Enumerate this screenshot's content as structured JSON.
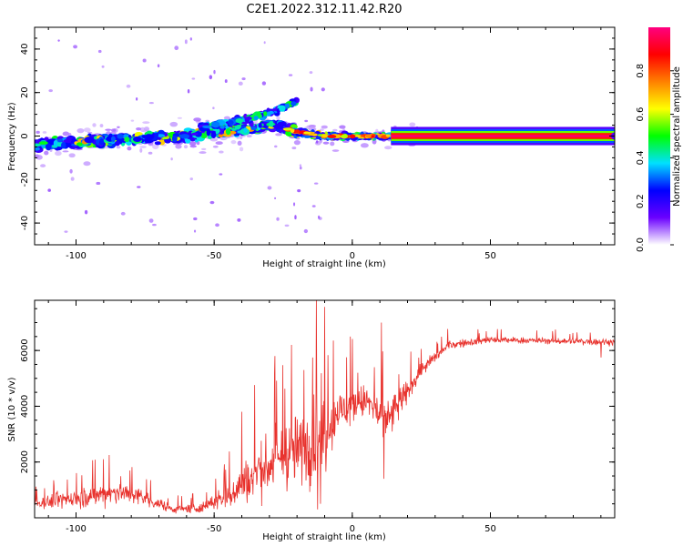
{
  "title": "C2E1.2022.312.11.42.R20",
  "chart_data": [
    {
      "type": "heatmap",
      "xlabel": "Height of straight line (km)",
      "ylabel": "Frequency (Hz)",
      "xlim": [
        -115,
        95
      ],
      "ylim": [
        -50,
        50
      ],
      "xticks": [
        -100,
        -50,
        0,
        50
      ],
      "yticks": [
        -40,
        -20,
        0,
        20,
        40
      ],
      "colorbar": {
        "label": "Normalized spectral amplitude",
        "range": [
          0,
          1
        ],
        "ticks": [
          "0.0",
          "0.2",
          "0.4",
          "0.6",
          "0.8"
        ],
        "colors": [
          "#ffffff",
          "#6a00ff",
          "#0000ff",
          "#00e0ff",
          "#00ff00",
          "#ffff00",
          "#ff8000",
          "#ff0000",
          "#ff0080"
        ]
      },
      "band_centerline": [
        {
          "x": -115,
          "y": -4
        },
        {
          "x": -90,
          "y": -2
        },
        {
          "x": -60,
          "y": 0
        },
        {
          "x": -40,
          "y": 3
        },
        {
          "x": -28,
          "y": 5
        },
        {
          "x": -20,
          "y": 2
        },
        {
          "x": -10,
          "y": 0
        },
        {
          "x": 15,
          "y": 0
        },
        {
          "x": 95,
          "y": 0
        }
      ],
      "branch": [
        {
          "x": -55,
          "y": 4
        },
        {
          "x": -40,
          "y": 7
        },
        {
          "x": -27,
          "y": 12
        },
        {
          "x": -20,
          "y": 16
        }
      ],
      "steady_line": {
        "x_start": 14,
        "x_end": 95,
        "y": 0,
        "amplitude": 1.0
      }
    },
    {
      "type": "line",
      "xlabel": "Height of straight line (km)",
      "ylabel": "SNR (10 * v/v)",
      "xlim": [
        -115,
        95
      ],
      "ylim": [
        0,
        7800
      ],
      "xticks": [
        -100,
        -50,
        0,
        50
      ],
      "yticks": [
        2000,
        4000,
        6000
      ],
      "series": [
        {
          "color": "#e8322d",
          "envelope": [
            {
              "x": -115,
              "base": 500,
              "spread": 350
            },
            {
              "x": -100,
              "base": 700,
              "spread": 500
            },
            {
              "x": -85,
              "base": 950,
              "spread": 700
            },
            {
              "x": -75,
              "base": 700,
              "spread": 450
            },
            {
              "x": -65,
              "base": 300,
              "spread": 200
            },
            {
              "x": -55,
              "base": 350,
              "spread": 250
            },
            {
              "x": -45,
              "base": 800,
              "spread": 700
            },
            {
              "x": -35,
              "base": 1600,
              "spread": 1400
            },
            {
              "x": -25,
              "base": 2200,
              "spread": 1800
            },
            {
              "x": -18,
              "base": 2500,
              "spread": 2000
            },
            {
              "x": -12,
              "base": 2800,
              "spread": 2600
            },
            {
              "x": -5,
              "base": 3800,
              "spread": 1200
            },
            {
              "x": 5,
              "base": 4200,
              "spread": 900
            },
            {
              "x": 12,
              "base": 3400,
              "spread": 1400
            },
            {
              "x": 18,
              "base": 4200,
              "spread": 800
            },
            {
              "x": 25,
              "base": 5300,
              "spread": 400
            },
            {
              "x": 35,
              "base": 6200,
              "spread": 250
            },
            {
              "x": 50,
              "base": 6380,
              "spread": 180
            },
            {
              "x": 70,
              "base": 6350,
              "spread": 180
            },
            {
              "x": 95,
              "base": 6300,
              "spread": 200
            }
          ],
          "spikes": [
            {
              "x": -13.0,
              "y": 7850
            },
            {
              "x": -12.5,
              "y": 300
            },
            {
              "x": -11.5,
              "y": 500
            },
            {
              "x": 10.5,
              "y": 7000
            },
            {
              "x": 11.5,
              "y": 1400
            },
            {
              "x": -22,
              "y": 6200
            },
            {
              "x": -17.5,
              "y": 5300
            },
            {
              "x": -28,
              "y": 5800
            },
            {
              "x": -40,
              "y": 3800
            },
            {
              "x": 2,
              "y": 5200
            },
            {
              "x": 8,
              "y": 5400
            },
            {
              "x": -88,
              "y": 2250
            },
            {
              "x": 90,
              "y": 5750
            }
          ]
        }
      ]
    }
  ]
}
